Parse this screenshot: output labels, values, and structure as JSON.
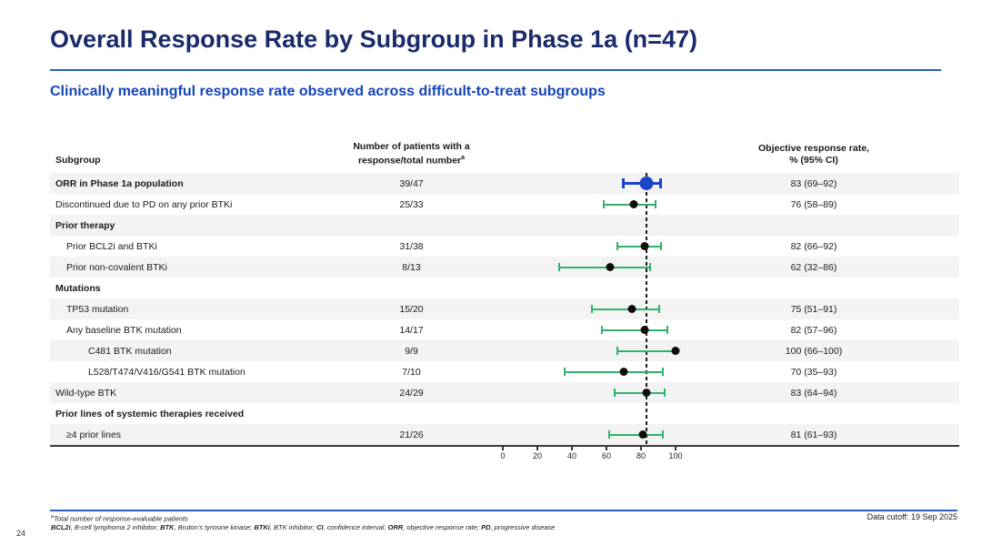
{
  "slide": {
    "title": "Overall Response Rate by Subgroup in Phase 1a (n=47)",
    "subtitle": "Clinically meaningful response rate observed across difficult-to-treat subgroups",
    "page_number": "24"
  },
  "table": {
    "headers": {
      "subgroup": "Subgroup",
      "patients_line1": "Number of patients with a",
      "patients_line2": "response/total number",
      "patients_superscript": "a",
      "orr_line1": "Objective response rate,",
      "orr_line2": "% (95% CI)"
    },
    "rows": [
      {
        "label": "ORR in Phase 1a population",
        "n": "39/47",
        "orr": "83 (69–92)",
        "bold": true,
        "indent": 0,
        "shaded": true
      },
      {
        "label": "Discontinued due to PD on any prior BTKi",
        "n": "25/33",
        "orr": "76 (58–89)",
        "bold": false,
        "indent": 0,
        "shaded": false
      },
      {
        "label": "Prior therapy",
        "bold": true,
        "indent": 0,
        "shaded": true,
        "section": true
      },
      {
        "label": "Prior BCL2i and BTKi",
        "n": "31/38",
        "orr": "82 (66–92)",
        "bold": false,
        "indent": 1,
        "shaded": false
      },
      {
        "label": "Prior non-covalent BTKi",
        "n": "8/13",
        "orr": "62 (32–86)",
        "bold": false,
        "indent": 1,
        "shaded": true
      },
      {
        "label": "Mutations",
        "bold": true,
        "indent": 0,
        "shaded": false,
        "section": true
      },
      {
        "label": "TP53 mutation",
        "n": "15/20",
        "orr": "75 (51–91)",
        "bold": false,
        "indent": 1,
        "shaded": true
      },
      {
        "label": "Any baseline BTK mutation",
        "n": "14/17",
        "orr": "82 (57–96)",
        "bold": false,
        "indent": 1,
        "shaded": false
      },
      {
        "label": "C481 BTK mutation",
        "n": "9/9",
        "orr": "100 (66–100)",
        "bold": false,
        "indent": 2,
        "shaded": true
      },
      {
        "label": "L528/T474/V416/G541 BTK mutation",
        "n": "7/10",
        "orr": "70 (35–93)",
        "bold": false,
        "indent": 2,
        "shaded": false
      },
      {
        "label": "Wild-type BTK",
        "n": "24/29",
        "orr": "83 (64–94)",
        "bold": false,
        "indent": 0,
        "shaded": true
      },
      {
        "label": "Prior lines of systemic therapies received",
        "bold": true,
        "indent": 0,
        "shaded": false,
        "section": true
      },
      {
        "label": "≥4 prior lines",
        "n": "21/26",
        "orr": "81 (61–93)",
        "bold": false,
        "indent": 1,
        "shaded": true
      }
    ]
  },
  "chart_data": {
    "type": "scatter",
    "variant": "forest-plot",
    "title": "Objective response rate by subgroup, % with 95% CI",
    "xlabel": "",
    "xlim": [
      0,
      100
    ],
    "x_ticks": [
      0,
      20,
      40,
      60,
      80,
      100
    ],
    "reference_line_x": 83,
    "points": [
      {
        "row_index": 0,
        "label": "ORR in Phase 1a population",
        "value": 83,
        "ci": [
          69,
          92
        ],
        "color": "blue"
      },
      {
        "row_index": 1,
        "label": "Discontinued due to PD on any prior BTKi",
        "value": 76,
        "ci": [
          58,
          89
        ],
        "color": "green"
      },
      {
        "row_index": 3,
        "label": "Prior BCL2i and BTKi",
        "value": 82,
        "ci": [
          66,
          92
        ],
        "color": "green"
      },
      {
        "row_index": 4,
        "label": "Prior non-covalent BTKi",
        "value": 62,
        "ci": [
          32,
          86
        ],
        "color": "green"
      },
      {
        "row_index": 6,
        "label": "TP53 mutation",
        "value": 75,
        "ci": [
          51,
          91
        ],
        "color": "green"
      },
      {
        "row_index": 7,
        "label": "Any baseline BTK mutation",
        "value": 82,
        "ci": [
          57,
          96
        ],
        "color": "green"
      },
      {
        "row_index": 8,
        "label": "C481 BTK mutation",
        "value": 100,
        "ci": [
          66,
          100
        ],
        "color": "green"
      },
      {
        "row_index": 9,
        "label": "L528/T474/V416/G541 BTK mutation",
        "value": 70,
        "ci": [
          35,
          93
        ],
        "color": "green"
      },
      {
        "row_index": 10,
        "label": "Wild-type BTK",
        "value": 83,
        "ci": [
          64,
          94
        ],
        "color": "green"
      },
      {
        "row_index": 12,
        "label": "≥4 prior lines",
        "value": 81,
        "ci": [
          61,
          93
        ],
        "color": "green"
      }
    ]
  },
  "footer": {
    "footnote_marker": "a",
    "footnote": "Total number of response-evaluable patients",
    "abbreviations": [
      {
        "abbr": "BCL2i",
        "definition": "B-cell lymphoma 2 inhibitor"
      },
      {
        "abbr": "BTK",
        "definition": "Bruton’s tyrosine kinase"
      },
      {
        "abbr": "BTKi",
        "definition": "BTK inhibitor"
      },
      {
        "abbr": "CI",
        "definition": "confidence interval"
      },
      {
        "abbr": "ORR",
        "definition": "objective response rate"
      },
      {
        "abbr": "PD",
        "definition": "progressive disease"
      }
    ],
    "data_cutoff": "Data cutoff: 19 Sep 2025"
  },
  "colors": {
    "title_navy": "#1b2a6b",
    "subtitle_blue": "#1545bb",
    "rule_blue": "#2e5cc5",
    "marker_blue": "#1b46c8",
    "ci_green": "#2fb36c",
    "row_shade": "#f3f3f3"
  }
}
